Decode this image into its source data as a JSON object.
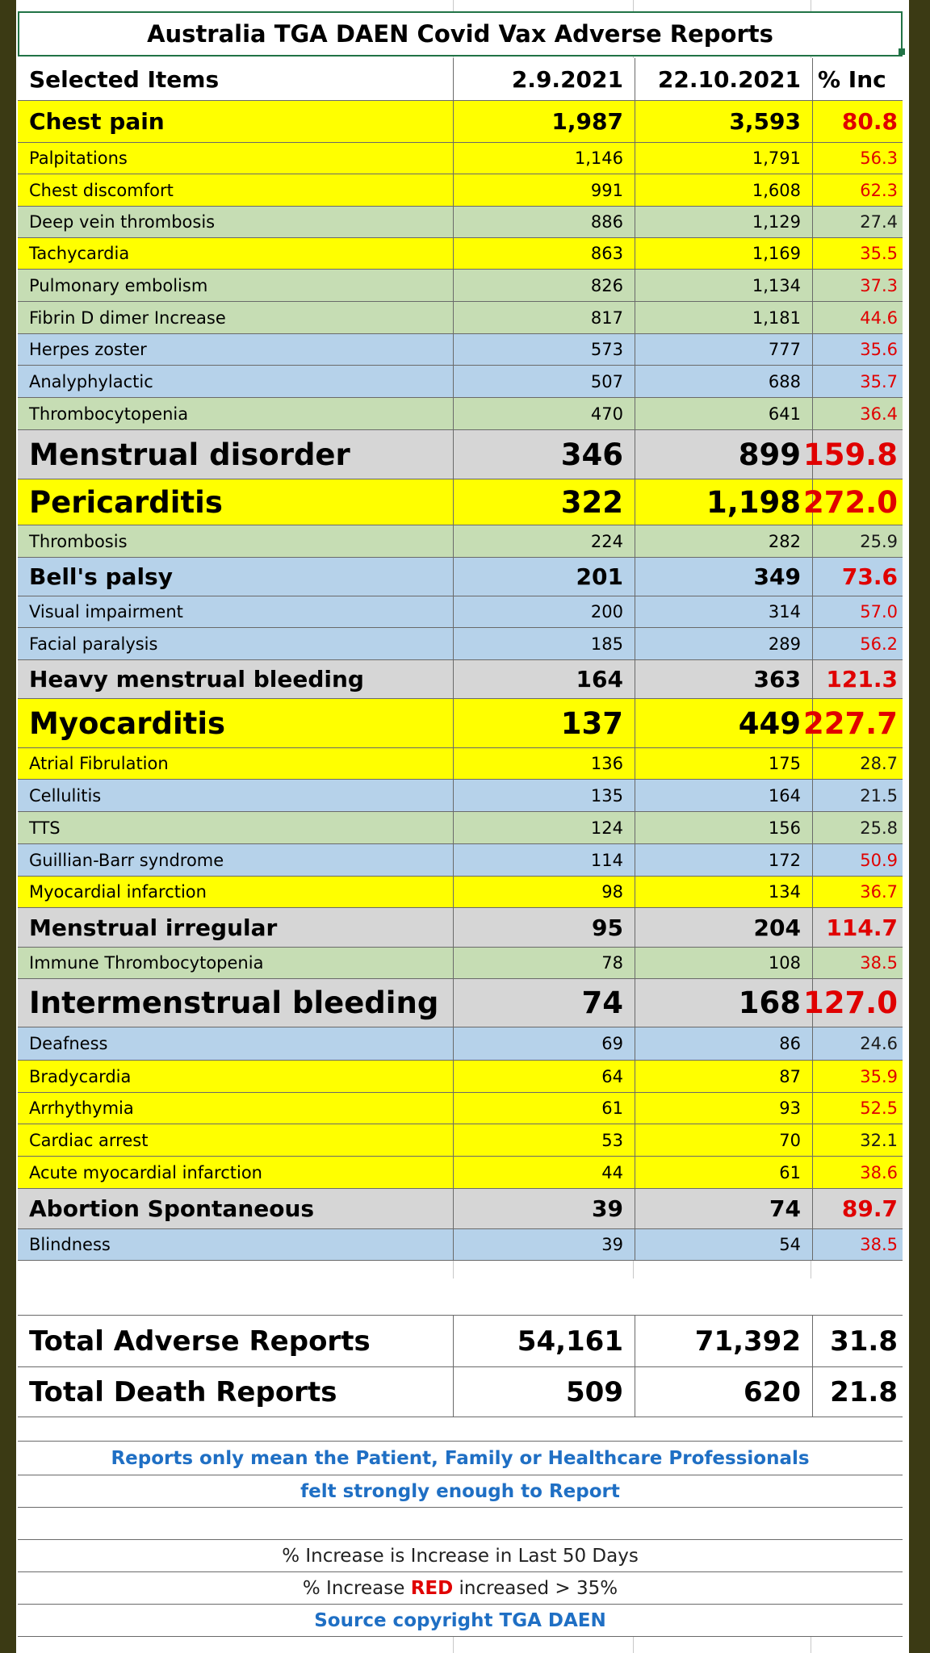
{
  "title": "Australia TGA DAEN Covid Vax Adverse Reports",
  "header": {
    "name": "Selected Items",
    "d1": "2.9.2021",
    "d2": "22.10.2021",
    "pct": "% Inc"
  },
  "rows": [
    {
      "name": "Chest pain",
      "v1": "1,987",
      "v2": "3,593",
      "pct": "80.8"
    },
    {
      "name": "Palpitations",
      "v1": "1,146",
      "v2": "1,791",
      "pct": "56.3"
    },
    {
      "name": "Chest discomfort",
      "v1": "991",
      "v2": "1,608",
      "pct": "62.3"
    },
    {
      "name": "Deep vein thrombosis",
      "v1": "886",
      "v2": "1,129",
      "pct": "27.4"
    },
    {
      "name": "Tachycardia",
      "v1": "863",
      "v2": "1,169",
      "pct": "35.5"
    },
    {
      "name": "Pulmonary embolism",
      "v1": "826",
      "v2": "1,134",
      "pct": "37.3"
    },
    {
      "name": "Fibrin D dimer Increase",
      "v1": "817",
      "v2": "1,181",
      "pct": "44.6"
    },
    {
      "name": "Herpes zoster",
      "v1": "573",
      "v2": "777",
      "pct": "35.6"
    },
    {
      "name": "Analyphylactic",
      "v1": "507",
      "v2": "688",
      "pct": "35.7"
    },
    {
      "name": "Thrombocytopenia",
      "v1": "470",
      "v2": "641",
      "pct": "36.4"
    },
    {
      "name": "Menstrual disorder",
      "v1": "346",
      "v2": "899",
      "pct": "159.8"
    },
    {
      "name": "Pericarditis",
      "v1": "322",
      "v2": "1,198",
      "pct": "272.0"
    },
    {
      "name": "Thrombosis",
      "v1": "224",
      "v2": "282",
      "pct": "25.9"
    },
    {
      "name": "Bell's palsy",
      "v1": "201",
      "v2": "349",
      "pct": "73.6"
    },
    {
      "name": "Visual impairment",
      "v1": "200",
      "v2": "314",
      "pct": "57.0"
    },
    {
      "name": "Facial paralysis",
      "v1": "185",
      "v2": "289",
      "pct": "56.2"
    },
    {
      "name": "Heavy menstrual bleeding",
      "v1": "164",
      "v2": "363",
      "pct": "121.3"
    },
    {
      "name": "Myocarditis",
      "v1": "137",
      "v2": "449",
      "pct": "227.7"
    },
    {
      "name": "Atrial Fibrulation",
      "v1": "136",
      "v2": "175",
      "pct": "28.7"
    },
    {
      "name": "Cellulitis",
      "v1": "135",
      "v2": "164",
      "pct": "21.5"
    },
    {
      "name": "TTS",
      "v1": "124",
      "v2": "156",
      "pct": "25.8"
    },
    {
      "name": "Guillian-Barr syndrome",
      "v1": "114",
      "v2": "172",
      "pct": "50.9"
    },
    {
      "name": "Myocardial infarction",
      "v1": "98",
      "v2": "134",
      "pct": "36.7"
    },
    {
      "name": "Menstrual irregular",
      "v1": "95",
      "v2": "204",
      "pct": "114.7"
    },
    {
      "name": "Immune Thrombocytopenia",
      "v1": "78",
      "v2": "108",
      "pct": "38.5"
    },
    {
      "name": "Intermenstrual bleeding",
      "v1": "74",
      "v2": "168",
      "pct": "127.0"
    },
    {
      "name": "Deafness",
      "v1": "69",
      "v2": "86",
      "pct": "24.6"
    },
    {
      "name": "Bradycardia",
      "v1": "64",
      "v2": "87",
      "pct": "35.9"
    },
    {
      "name": "Arrhythymia",
      "v1": "61",
      "v2": "93",
      "pct": "52.5"
    },
    {
      "name": "Cardiac arrest",
      "v1": "53",
      "v2": "70",
      "pct": "32.1"
    },
    {
      "name": "Acute myocardial infarction",
      "v1": "44",
      "v2": "61",
      "pct": "38.6"
    },
    {
      "name": "Abortion Spontaneous",
      "v1": "39",
      "v2": "74",
      "pct": "89.7"
    },
    {
      "name": "Blindness",
      "v1": "39",
      "v2": "54",
      "pct": "38.5"
    }
  ],
  "totals": [
    {
      "name": "Total Adverse Reports",
      "v1": "54,161",
      "v2": "71,392",
      "pct": "31.8"
    },
    {
      "name": "Total Death Reports",
      "v1": "509",
      "v2": "620",
      "pct": "21.8"
    }
  ],
  "notes": {
    "line1": "Reports only mean the Patient, Family or Healthcare Professionals",
    "line2": "felt strongly enough to Report",
    "line3": "% Increase is Increase in Last 50 Days",
    "line4_pre": "% Increase ",
    "line4_red": "RED",
    "line4_post": " increased > 35%",
    "line5": "Source copyright TGA DAEN"
  },
  "colors": {
    "yellow": "#ffff00",
    "green": "#c6ddb4",
    "blue": "#b6d2ea",
    "grey": "#d6d6d6",
    "red": "#e00000",
    "note_blue": "#1f6fc4"
  }
}
